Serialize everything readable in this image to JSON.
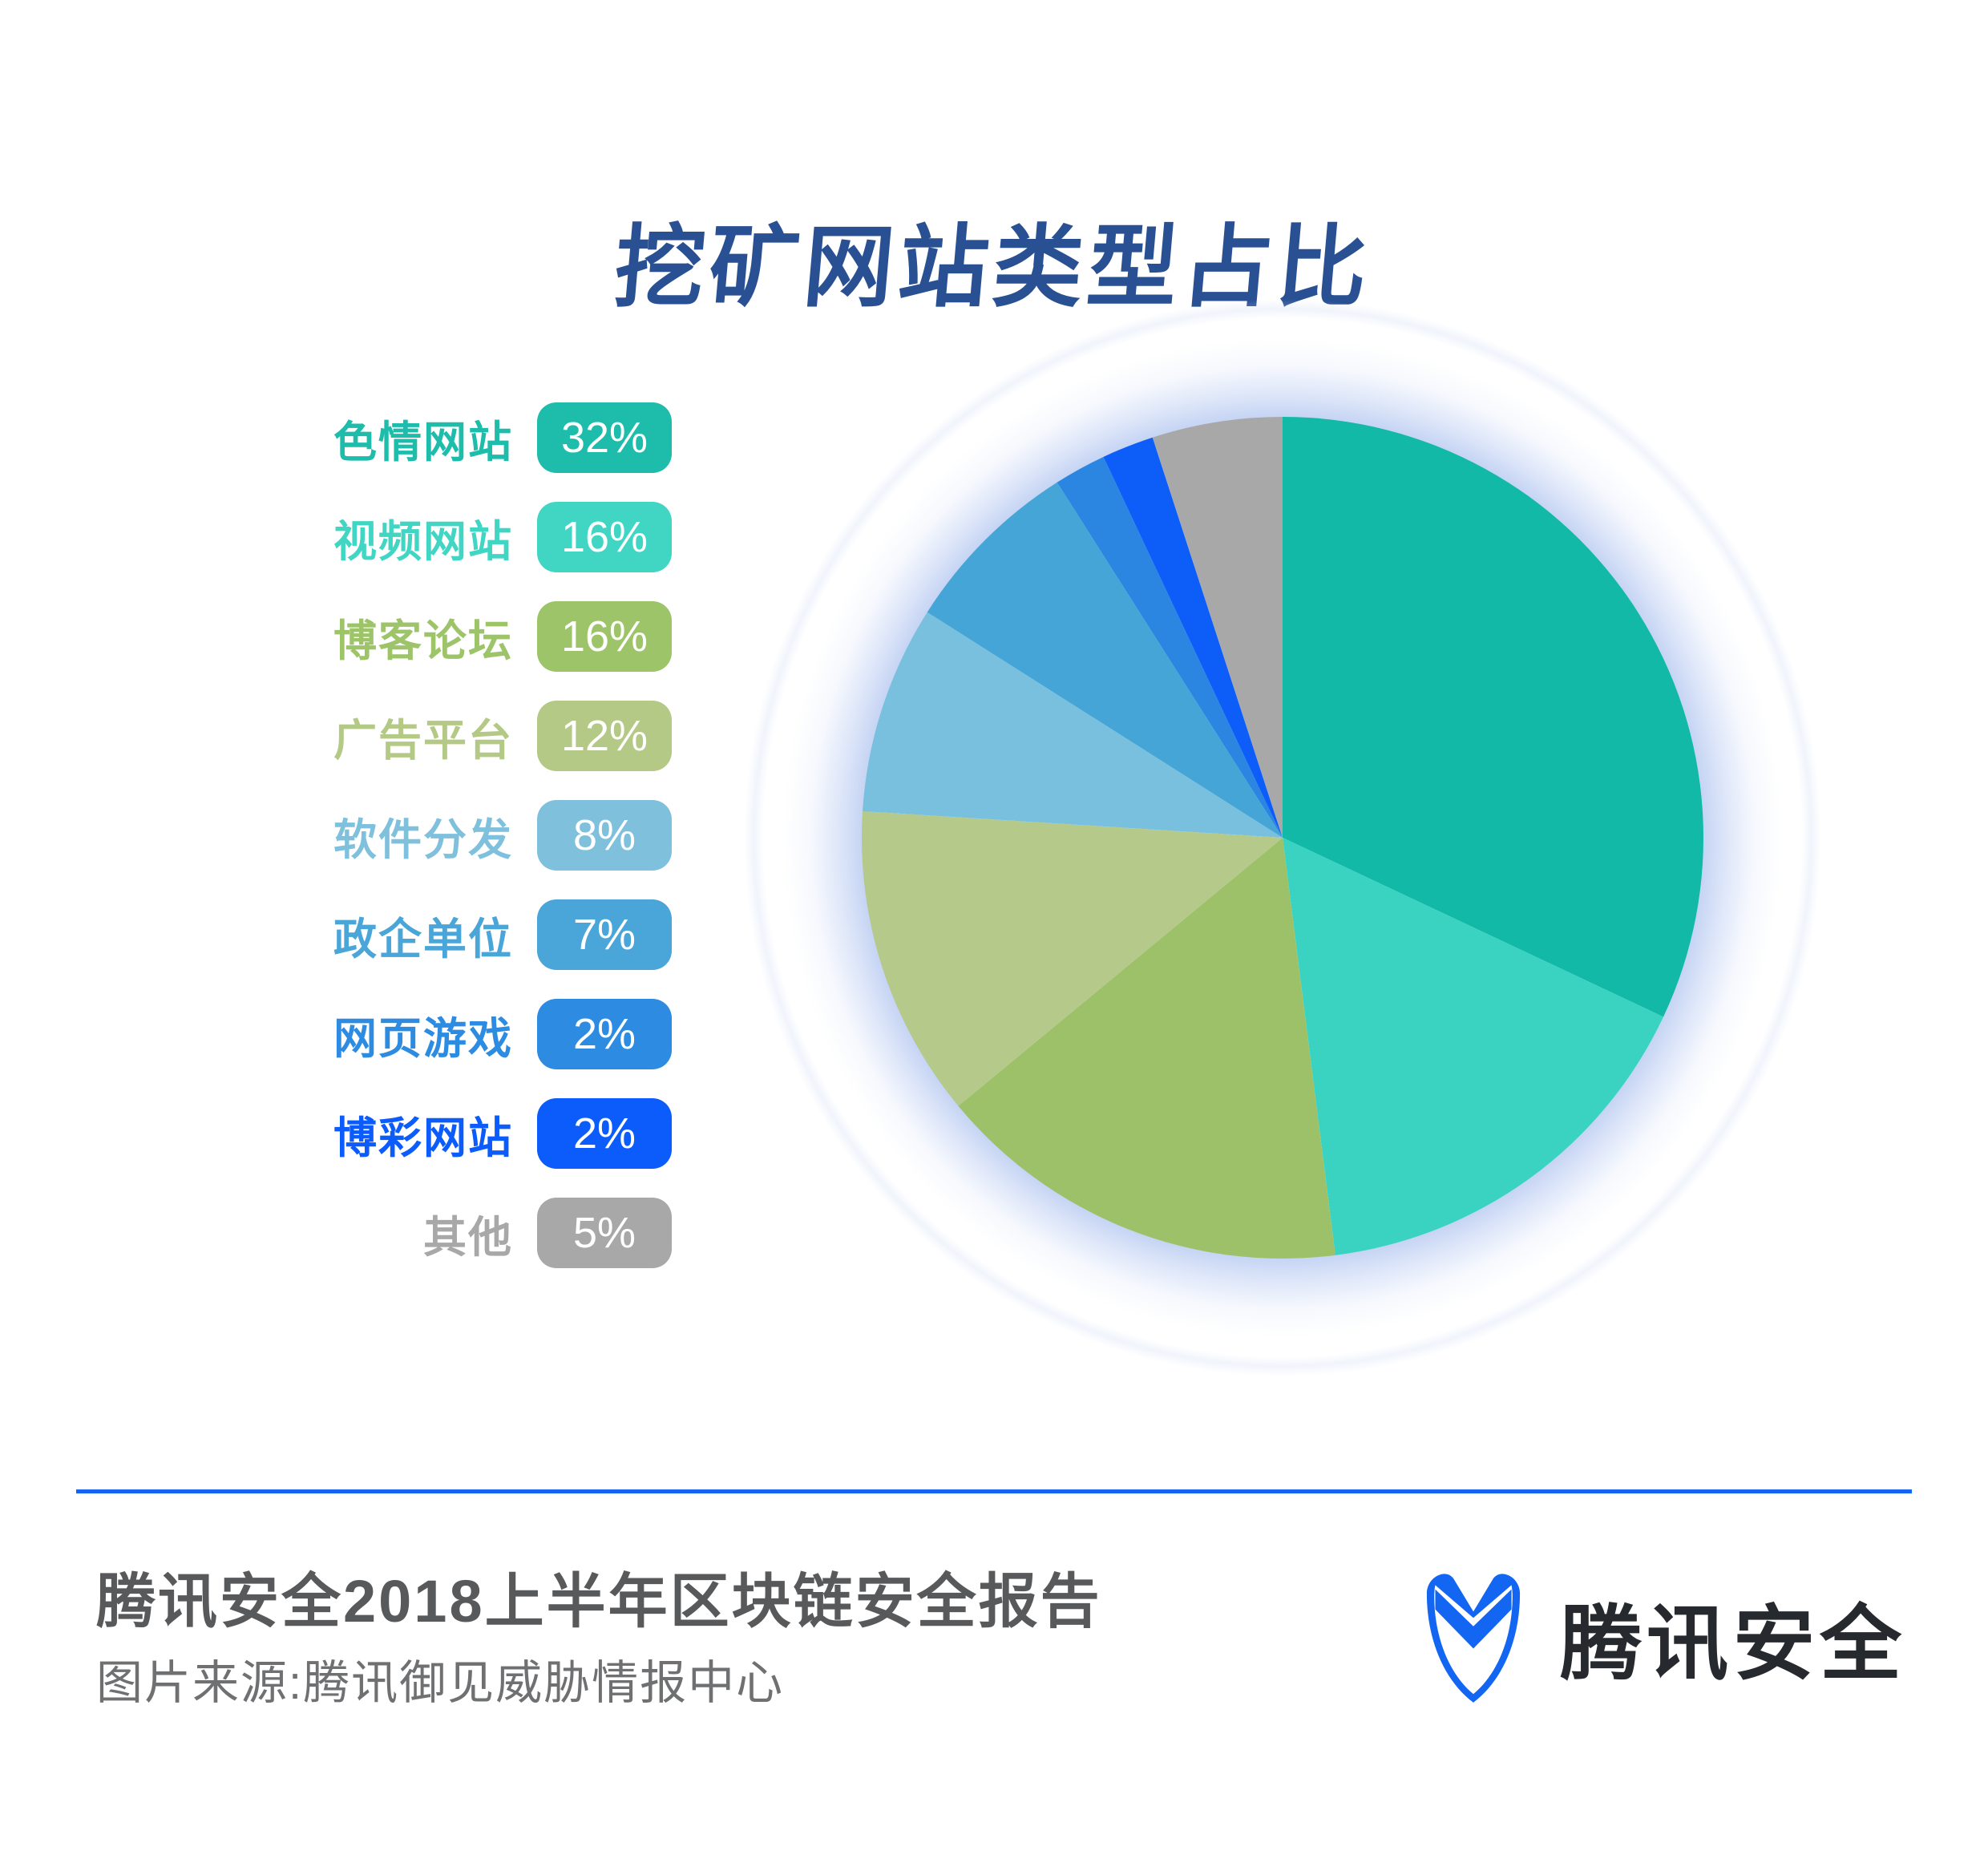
{
  "title": {
    "text": "挖矿网站类型占比",
    "color": "#2a5094"
  },
  "chart_data": {
    "type": "pie",
    "title": "挖矿网站类型占比",
    "categories": [
      "色情网站",
      "视频网站",
      "博客论坛",
      "广告平台",
      "软件分发",
      "政企单位",
      "网页游戏",
      "博彩网站",
      "其他"
    ],
    "values": [
      32,
      16,
      16,
      12,
      8,
      7,
      2,
      2,
      5
    ],
    "unit": "%",
    "colors": [
      "#12b9a7",
      "#3ad3c2",
      "#9dc169",
      "#b4c98a",
      "#79c0de",
      "#45a5d6",
      "#2a86e0",
      "#0d5ef8",
      "#a8a8a8"
    ],
    "start_angle_deg": 0,
    "direction": "clockwise",
    "legend_position": "left",
    "glow_color": "#a9c0ec"
  },
  "legend": {
    "items": [
      {
        "label": "色情网站",
        "value_label": "32%",
        "color": "#1ebcaa"
      },
      {
        "label": "视频网站",
        "value_label": "16%",
        "color": "#41d6c3"
      },
      {
        "label": "博客论坛",
        "value_label": "16%",
        "color": "#9ec46a"
      },
      {
        "label": "广告平台",
        "value_label": "12%",
        "color": "#b5c987"
      },
      {
        "label": "软件分发",
        "value_label": "8%",
        "color": "#7fc0dc"
      },
      {
        "label": "政企单位",
        "value_label": "7%",
        "color": "#4aa5d8"
      },
      {
        "label": "网页游戏",
        "value_label": "2%",
        "color": "#2d8ce2"
      },
      {
        "label": "博彩网站",
        "value_label": "2%",
        "color": "#0b5cfa"
      },
      {
        "label": "其他",
        "value_label": "5%",
        "color": "#a8a8a8"
      }
    ]
  },
  "footer": {
    "report_title": "腾讯安全2018上半年区块链安全报告",
    "source_note": "图片来源:腾讯御见威胁情报中心",
    "divider_color": "#1565f5",
    "brand": {
      "name": "腾讯安全",
      "shield_color": "#1266f1",
      "text_color": "#26292e"
    }
  }
}
